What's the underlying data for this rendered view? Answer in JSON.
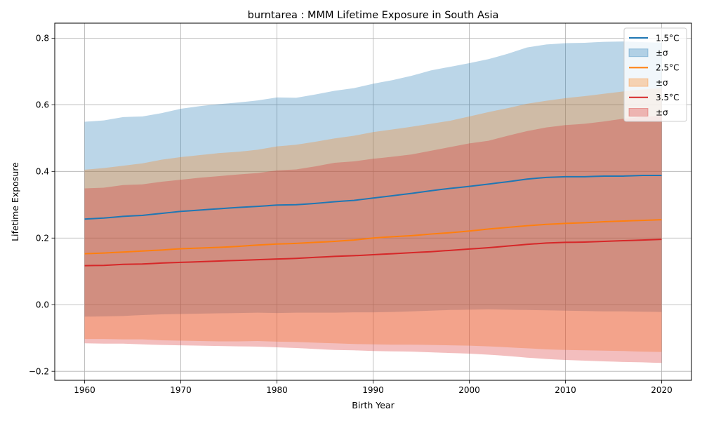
{
  "chart_data": {
    "type": "area",
    "title": "burntarea : MMM Lifetime Exposure in South Asia",
    "xlabel": "Birth Year",
    "ylabel": "Lifetime Exposure",
    "xlim": [
      1956.9,
      2023.1
    ],
    "ylim": [
      -0.227,
      0.845
    ],
    "xticks": [
      1960,
      1970,
      1980,
      1990,
      2000,
      2010,
      2020
    ],
    "xtick_labels": [
      "1960",
      "1970",
      "1980",
      "1990",
      "2000",
      "2010",
      "2020"
    ],
    "yticks": [
      -0.2,
      0.0,
      0.2,
      0.4,
      0.6,
      0.8
    ],
    "ytick_labels": [
      "−0.2",
      "0.0",
      "0.2",
      "0.4",
      "0.6",
      "0.8"
    ],
    "grid": true,
    "legend_position": "top-right",
    "x": [
      1960,
      1961,
      1962,
      1963,
      1964,
      1965,
      1966,
      1967,
      1968,
      1969,
      1970,
      1971,
      1972,
      1973,
      1974,
      1975,
      1976,
      1977,
      1978,
      1979,
      1980,
      1981,
      1982,
      1983,
      1984,
      1985,
      1986,
      1987,
      1988,
      1989,
      1990,
      1991,
      1992,
      1993,
      1994,
      1995,
      1996,
      1997,
      1998,
      1999,
      2000,
      2001,
      2002,
      2003,
      2004,
      2005,
      2006,
      2007,
      2008,
      2009,
      2010,
      2011,
      2012,
      2013,
      2014,
      2015,
      2016,
      2017,
      2018,
      2019,
      2020
    ],
    "series": [
      {
        "name": "1.5°C",
        "band_label": "±σ",
        "color": "#1f77b4",
        "band_fill": "#1f77b4",
        "band_opacity": 0.3,
        "keyframes": [
          [
            1960,
            0.257,
            0.549,
            -0.036
          ],
          [
            1962,
            0.26,
            0.553,
            -0.035
          ],
          [
            1964,
            0.265,
            0.563,
            -0.034
          ],
          [
            1966,
            0.268,
            0.565,
            -0.031
          ],
          [
            1968,
            0.274,
            0.575,
            -0.029
          ],
          [
            1970,
            0.28,
            0.588,
            -0.028
          ],
          [
            1972,
            0.284,
            0.596,
            -0.027
          ],
          [
            1974,
            0.288,
            0.602,
            -0.026
          ],
          [
            1976,
            0.292,
            0.607,
            -0.025
          ],
          [
            1978,
            0.295,
            0.613,
            -0.024
          ],
          [
            1980,
            0.299,
            0.622,
            -0.025
          ],
          [
            1982,
            0.3,
            0.621,
            -0.024
          ],
          [
            1984,
            0.304,
            0.631,
            -0.024
          ],
          [
            1986,
            0.309,
            0.642,
            -0.024
          ],
          [
            1988,
            0.313,
            0.65,
            -0.023
          ],
          [
            1990,
            0.32,
            0.663,
            -0.023
          ],
          [
            1992,
            0.327,
            0.674,
            -0.022
          ],
          [
            1994,
            0.334,
            0.687,
            -0.02
          ],
          [
            1996,
            0.342,
            0.703,
            -0.018
          ],
          [
            1998,
            0.349,
            0.714,
            -0.016
          ],
          [
            2000,
            0.355,
            0.725,
            -0.015
          ],
          [
            2002,
            0.362,
            0.737,
            -0.014
          ],
          [
            2004,
            0.369,
            0.753,
            -0.015
          ],
          [
            2006,
            0.377,
            0.772,
            -0.016
          ],
          [
            2008,
            0.382,
            0.781,
            -0.017
          ],
          [
            2010,
            0.384,
            0.785,
            -0.018
          ],
          [
            2012,
            0.384,
            0.786,
            -0.019
          ],
          [
            2014,
            0.386,
            0.789,
            -0.02
          ],
          [
            2016,
            0.386,
            0.79,
            -0.02
          ],
          [
            2018,
            0.388,
            0.788,
            -0.021
          ],
          [
            2020,
            0.388,
            0.786,
            -0.022
          ]
        ]
      },
      {
        "name": "2.5°C",
        "band_label": "±σ",
        "color": "#ff7f0e",
        "band_fill": "#ff7f0e",
        "band_opacity": 0.3,
        "keyframes": [
          [
            1960,
            0.153,
            0.405,
            -0.103
          ],
          [
            1962,
            0.155,
            0.41,
            -0.103
          ],
          [
            1964,
            0.158,
            0.417,
            -0.104
          ],
          [
            1966,
            0.161,
            0.424,
            -0.104
          ],
          [
            1968,
            0.164,
            0.435,
            -0.107
          ],
          [
            1970,
            0.168,
            0.443,
            -0.108
          ],
          [
            1972,
            0.17,
            0.449,
            -0.109
          ],
          [
            1974,
            0.172,
            0.455,
            -0.11
          ],
          [
            1976,
            0.175,
            0.459,
            -0.11
          ],
          [
            1978,
            0.179,
            0.465,
            -0.109
          ],
          [
            1980,
            0.182,
            0.475,
            -0.111
          ],
          [
            1982,
            0.184,
            0.48,
            -0.112
          ],
          [
            1984,
            0.187,
            0.489,
            -0.114
          ],
          [
            1986,
            0.19,
            0.499,
            -0.116
          ],
          [
            1988,
            0.194,
            0.507,
            -0.118
          ],
          [
            1990,
            0.2,
            0.518,
            -0.119
          ],
          [
            1992,
            0.204,
            0.526,
            -0.12
          ],
          [
            1994,
            0.207,
            0.534,
            -0.12
          ],
          [
            1996,
            0.212,
            0.543,
            -0.121
          ],
          [
            1998,
            0.216,
            0.552,
            -0.122
          ],
          [
            2000,
            0.221,
            0.565,
            -0.123
          ],
          [
            2002,
            0.227,
            0.578,
            -0.125
          ],
          [
            2004,
            0.232,
            0.59,
            -0.128
          ],
          [
            2006,
            0.237,
            0.603,
            -0.131
          ],
          [
            2008,
            0.241,
            0.612,
            -0.134
          ],
          [
            2010,
            0.244,
            0.62,
            -0.136
          ],
          [
            2012,
            0.246,
            0.626,
            -0.137
          ],
          [
            2014,
            0.249,
            0.633,
            -0.138
          ],
          [
            2016,
            0.251,
            0.64,
            -0.139
          ],
          [
            2018,
            0.253,
            0.646,
            -0.141
          ],
          [
            2020,
            0.255,
            0.65,
            -0.142
          ]
        ]
      },
      {
        "name": "3.5°C",
        "band_label": "±σ",
        "color": "#d62728",
        "band_fill": "#d62728",
        "band_opacity": 0.3,
        "keyframes": [
          [
            1960,
            0.117,
            0.349,
            -0.116
          ],
          [
            1962,
            0.118,
            0.351,
            -0.117
          ],
          [
            1964,
            0.121,
            0.359,
            -0.117
          ],
          [
            1966,
            0.122,
            0.361,
            -0.119
          ],
          [
            1968,
            0.125,
            0.369,
            -0.121
          ],
          [
            1970,
            0.127,
            0.375,
            -0.122
          ],
          [
            1972,
            0.129,
            0.381,
            -0.123
          ],
          [
            1974,
            0.131,
            0.386,
            -0.124
          ],
          [
            1976,
            0.133,
            0.391,
            -0.125
          ],
          [
            1978,
            0.135,
            0.395,
            -0.126
          ],
          [
            1980,
            0.137,
            0.403,
            -0.128
          ],
          [
            1982,
            0.139,
            0.406,
            -0.13
          ],
          [
            1984,
            0.142,
            0.415,
            -0.133
          ],
          [
            1986,
            0.145,
            0.426,
            -0.136
          ],
          [
            1988,
            0.147,
            0.43,
            -0.137
          ],
          [
            1990,
            0.15,
            0.438,
            -0.139
          ],
          [
            1992,
            0.153,
            0.444,
            -0.14
          ],
          [
            1994,
            0.156,
            0.451,
            -0.141
          ],
          [
            1996,
            0.159,
            0.462,
            -0.143
          ],
          [
            1998,
            0.163,
            0.473,
            -0.145
          ],
          [
            2000,
            0.167,
            0.484,
            -0.147
          ],
          [
            2002,
            0.171,
            0.492,
            -0.15
          ],
          [
            2004,
            0.176,
            0.507,
            -0.154
          ],
          [
            2006,
            0.181,
            0.521,
            -0.159
          ],
          [
            2008,
            0.185,
            0.532,
            -0.163
          ],
          [
            2010,
            0.187,
            0.539,
            -0.166
          ],
          [
            2012,
            0.188,
            0.543,
            -0.168
          ],
          [
            2014,
            0.19,
            0.55,
            -0.17
          ],
          [
            2016,
            0.192,
            0.558,
            -0.172
          ],
          [
            2018,
            0.194,
            0.563,
            -0.173
          ],
          [
            2020,
            0.196,
            0.568,
            -0.175
          ]
        ]
      }
    ]
  }
}
